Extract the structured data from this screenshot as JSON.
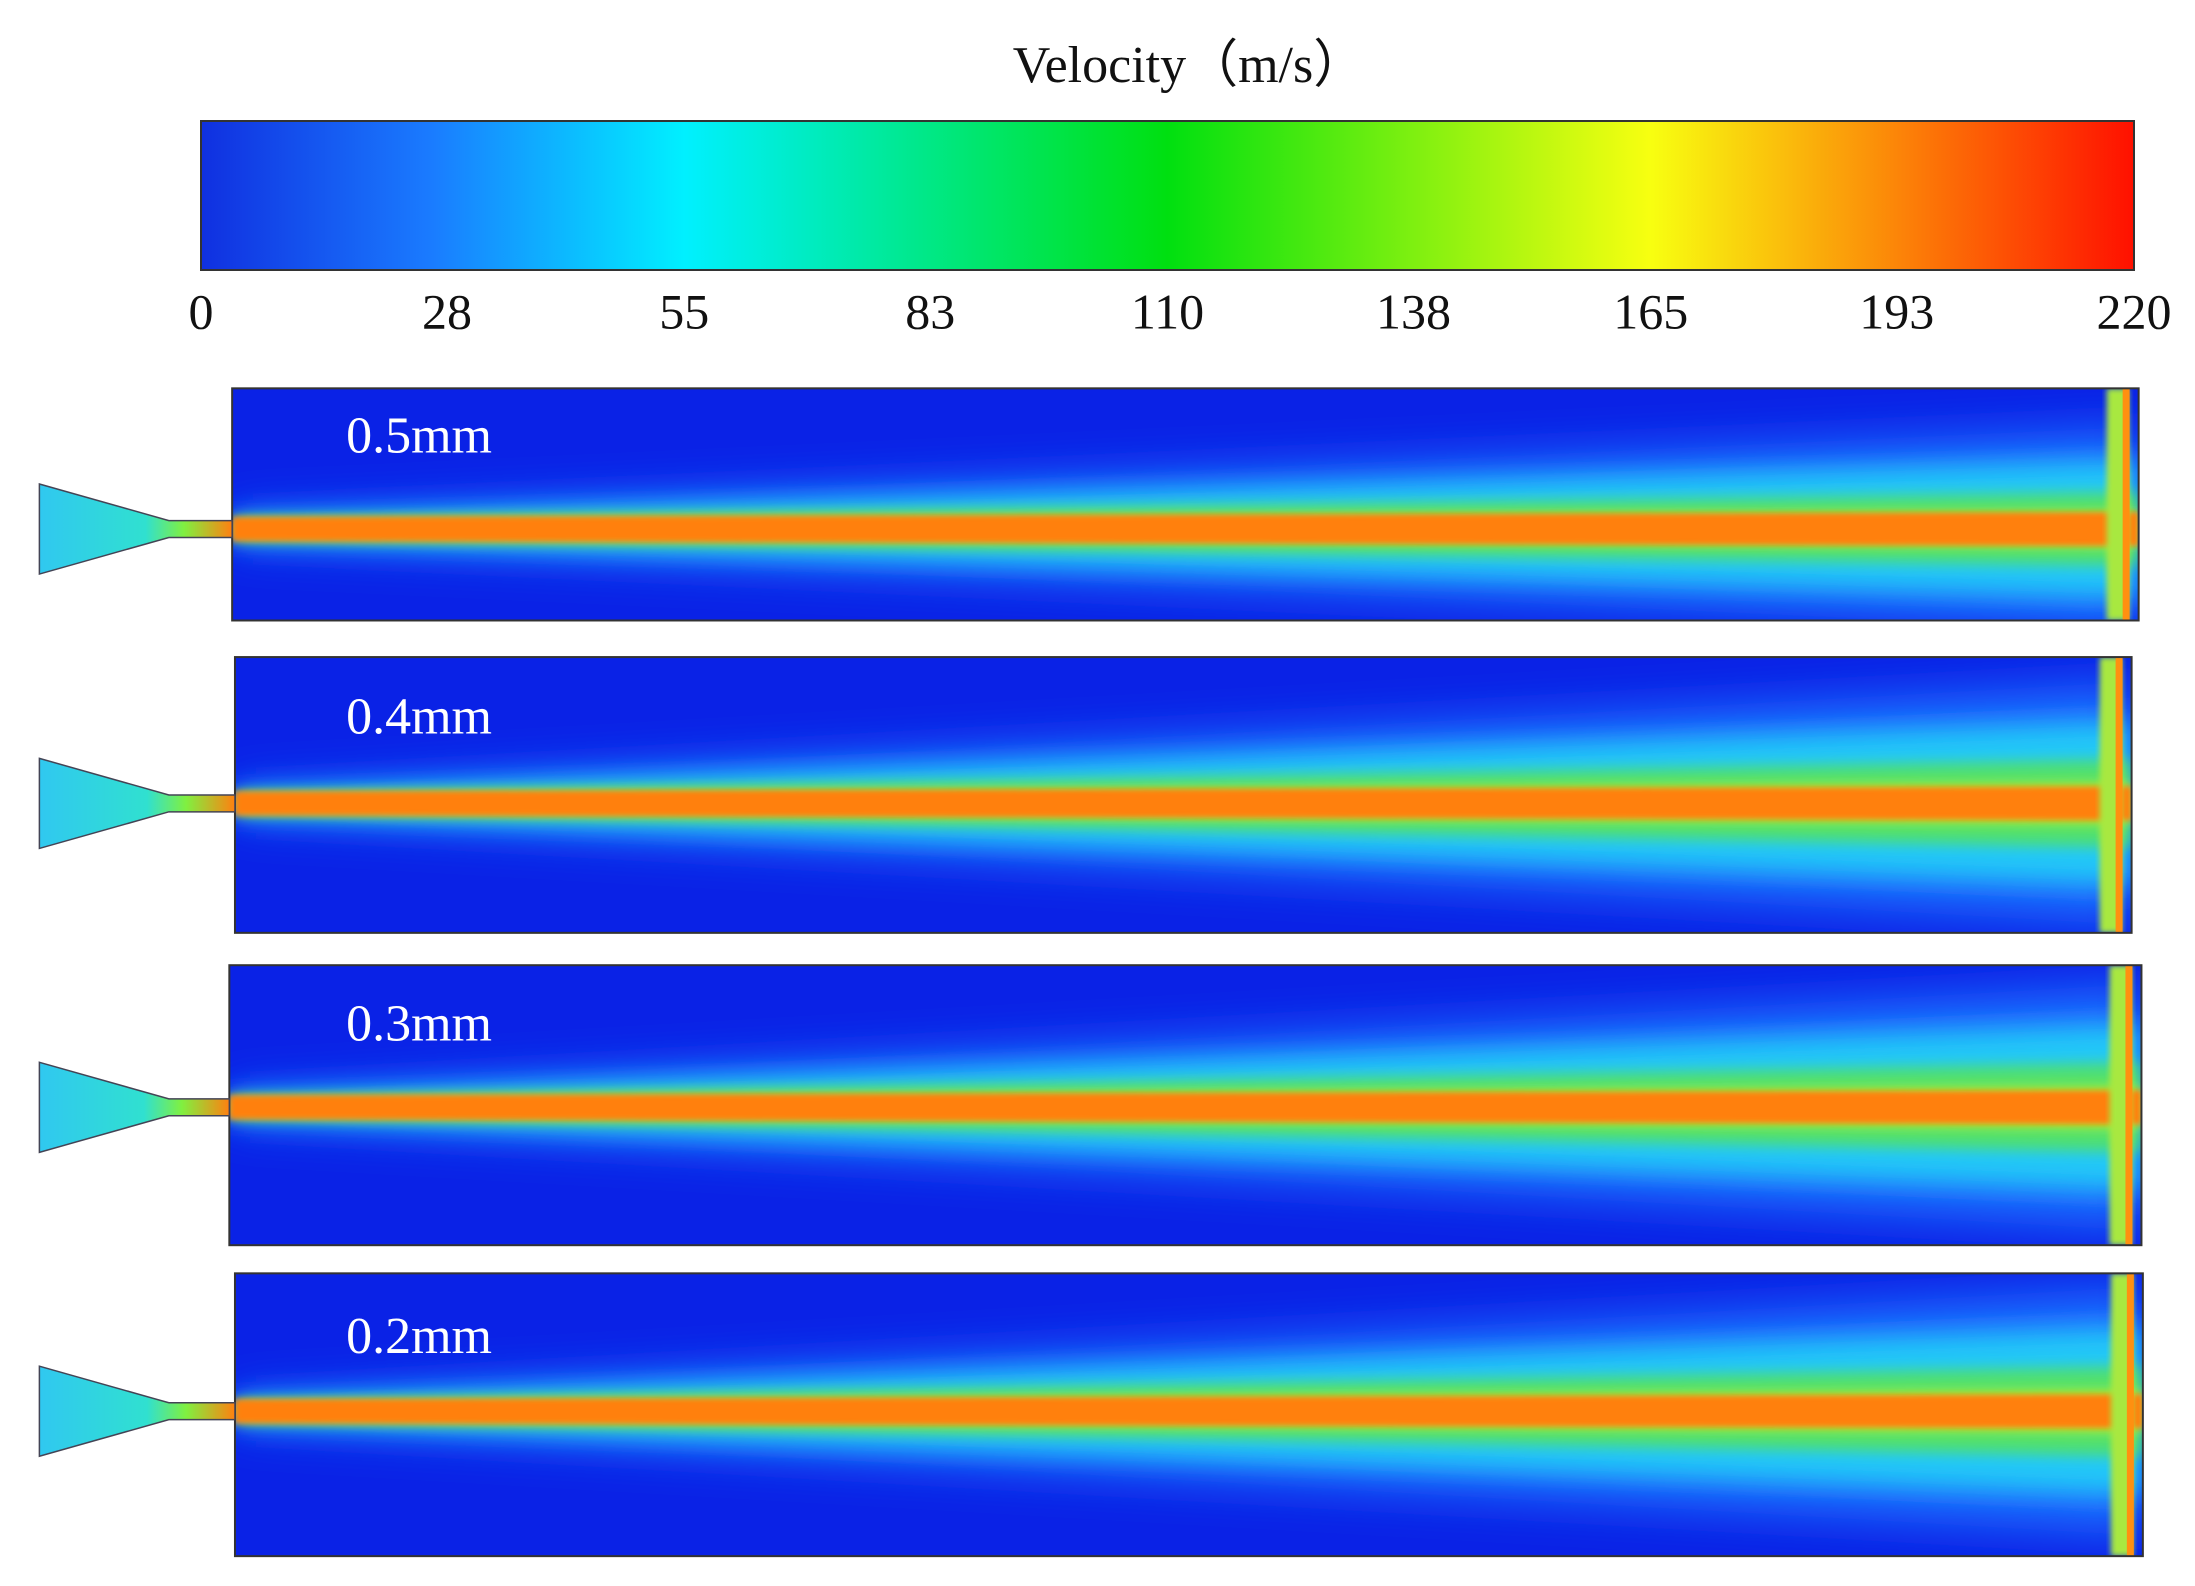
{
  "colorbar": {
    "title": "Velocity（m/s）",
    "ticks": [
      0,
      28,
      55,
      83,
      110,
      138,
      165,
      193,
      220
    ]
  },
  "panels": [
    {
      "label": "0.5mm"
    },
    {
      "label": "0.4mm"
    },
    {
      "label": "0.3mm"
    },
    {
      "label": "0.2mm"
    }
  ]
}
